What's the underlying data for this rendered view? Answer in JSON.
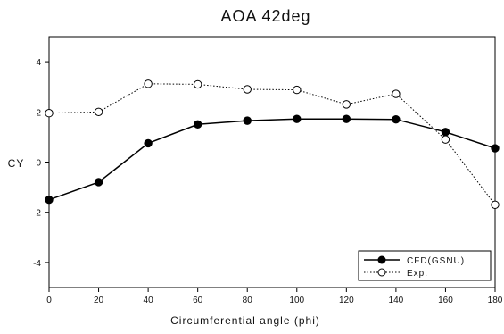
{
  "chart_data": {
    "type": "line",
    "title": "AOA 42deg",
    "xlabel": "Circumferential angle (phi)",
    "ylabel": "CY",
    "xlim": [
      0,
      180
    ],
    "ylim": [
      -5,
      5
    ],
    "xticks": [
      0,
      20,
      40,
      60,
      80,
      100,
      120,
      140,
      160,
      180
    ],
    "yticks": [
      -4,
      -2,
      0,
      2,
      4
    ],
    "grid": false,
    "legend_position": "bottom-right",
    "series": [
      {
        "name": "CFD(GSNU)",
        "marker": "filled-circle",
        "line": "solid",
        "color": "#000000",
        "x": [
          0,
          20,
          40,
          60,
          80,
          100,
          120,
          140,
          160,
          180
        ],
        "y": [
          -1.5,
          -0.8,
          0.75,
          1.5,
          1.65,
          1.72,
          1.72,
          1.7,
          1.2,
          0.55
        ]
      },
      {
        "name": "Exp.",
        "marker": "open-circle",
        "line": "dotted",
        "color": "#000000",
        "x": [
          0,
          20,
          40,
          60,
          80,
          100,
          120,
          140,
          160,
          180
        ],
        "y": [
          1.95,
          2.0,
          3.12,
          3.1,
          2.9,
          2.88,
          2.3,
          2.72,
          0.9,
          -1.7
        ]
      }
    ]
  }
}
